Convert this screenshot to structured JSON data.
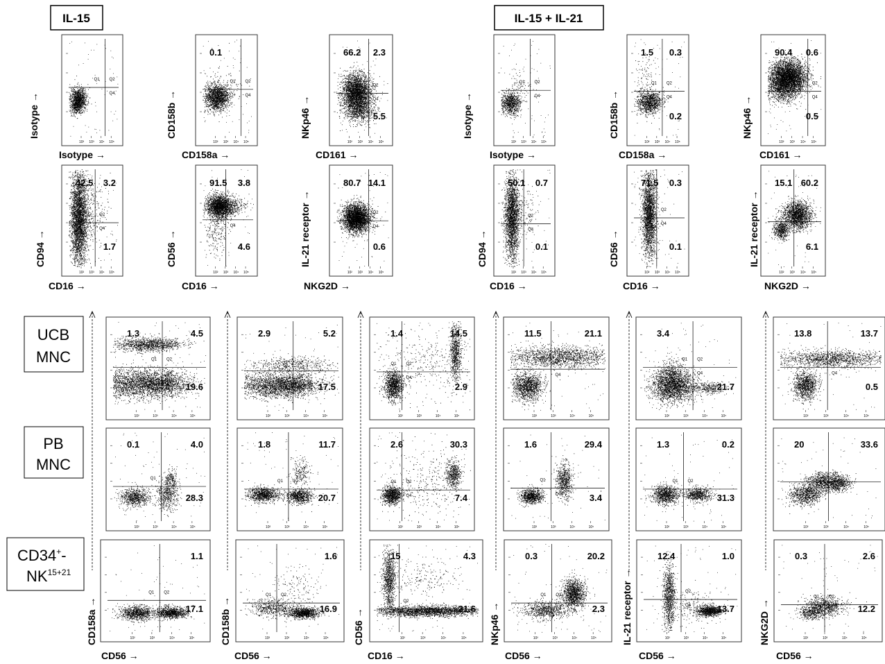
{
  "headers": {
    "il15": "IL-15",
    "il15_il21": "IL-15 + IL-21"
  },
  "row_labels": {
    "ucb": [
      "UCB",
      "MNC"
    ],
    "pb": [
      "PB",
      "MNC"
    ],
    "cd34": {
      "line1": "CD34",
      "line1_sup": "+",
      "line1_end": "-",
      "line2": "NK",
      "line2_sup": "15+21"
    }
  },
  "gate_labels": [
    "Q1",
    "Q2",
    "Q3",
    "Q4",
    "Q1-1",
    "Q2-1"
  ],
  "tick_labels": [
    "10²",
    "10³",
    "10⁴",
    "10⁵",
    "0"
  ],
  "axis_arrow": "→",
  "colors": {
    "dots": "#000000",
    "frame": "#333333",
    "background": "#ffffff"
  },
  "chart_data": [
    {
      "type": "scatter",
      "panel": "IL-15 isotype",
      "xlabel": "Isotype",
      "ylabel": "Isotype",
      "values": {}
    },
    {
      "type": "scatter",
      "panel": "IL-15 CD158a/CD158b",
      "xlabel": "CD158a",
      "ylabel": "CD158b",
      "values": {
        "tl": "0.1"
      }
    },
    {
      "type": "scatter",
      "panel": "IL-15 CD161/NKp46",
      "xlabel": "CD161",
      "ylabel": "NKp46",
      "values": {
        "tl": "66.2",
        "tr": "2.3",
        "br": "5.5"
      }
    },
    {
      "type": "scatter",
      "panel": "IL-15+IL-21 isotype",
      "xlabel": "Isotype",
      "ylabel": "Isotype",
      "values": {}
    },
    {
      "type": "scatter",
      "panel": "IL-15+IL-21 CD158a/CD158b",
      "xlabel": "CD158a",
      "ylabel": "CD158b",
      "values": {
        "tl": "1.5",
        "tr": "0.3",
        "br": "0.2"
      }
    },
    {
      "type": "scatter",
      "panel": "IL-15+IL-21 CD161/NKp46",
      "xlabel": "CD161",
      "ylabel": "NKp46",
      "values": {
        "tl": "90.4",
        "tr": "0.6",
        "br": "0.5"
      }
    },
    {
      "type": "scatter",
      "panel": "IL-15 CD16/CD94",
      "xlabel": "CD16",
      "ylabel": "CD94",
      "values": {
        "tl": "42.5",
        "tr": "3.2",
        "br": "1.7"
      }
    },
    {
      "type": "scatter",
      "panel": "IL-15 CD16/CD56",
      "xlabel": "CD16",
      "ylabel": "CD56",
      "values": {
        "tl": "91.5",
        "tr": "3.8",
        "br": "4.6"
      }
    },
    {
      "type": "scatter",
      "panel": "IL-15 NKG2D/IL-21 receptor",
      "xlabel": "NKG2D",
      "ylabel": "IL-21 receptor",
      "values": {
        "tl": "80.7",
        "tr": "14.1",
        "br": "0.6"
      }
    },
    {
      "type": "scatter",
      "panel": "IL-15+IL-21 CD16/CD94",
      "xlabel": "CD16",
      "ylabel": "CD94",
      "values": {
        "tl": "50.1",
        "tr": "0.7",
        "br": "0.1"
      }
    },
    {
      "type": "scatter",
      "panel": "IL-15+IL-21 CD16/CD56",
      "xlabel": "CD16",
      "ylabel": "CD56",
      "values": {
        "tl": "71.5",
        "tr": "0.3",
        "br": "0.1"
      }
    },
    {
      "type": "scatter",
      "panel": "IL-15+IL-21 NKG2D/IL-21 receptor",
      "xlabel": "NKG2D",
      "ylabel": "IL-21 receptor",
      "values": {
        "tl": "15.1",
        "tr": "60.2",
        "br": "6.1"
      }
    },
    {
      "type": "scatter",
      "panel": "UCB MNC CD56/CD158a",
      "values": {
        "tl": "1.3",
        "tr": "4.5",
        "br": "19.6"
      }
    },
    {
      "type": "scatter",
      "panel": "UCB MNC CD56/CD158b",
      "values": {
        "tl": "2.9",
        "tr": "5.2",
        "br": "17.5"
      }
    },
    {
      "type": "scatter",
      "panel": "UCB MNC CD16/CD56",
      "values": {
        "tl": "1.4",
        "tr": "14.5",
        "br": "2.9"
      }
    },
    {
      "type": "scatter",
      "panel": "UCB MNC CD56/NKp46",
      "values": {
        "tl": "11.5",
        "tr": "21.1"
      }
    },
    {
      "type": "scatter",
      "panel": "UCB MNC CD56/IL-21 receptor",
      "values": {
        "tl": "3.4",
        "br": "21.7"
      }
    },
    {
      "type": "scatter",
      "panel": "UCB MNC CD56/NKG2D",
      "values": {
        "tl": "13.8",
        "tr": "13.7",
        "br": "0.5"
      }
    },
    {
      "type": "scatter",
      "panel": "PB MNC CD56/CD158a",
      "values": {
        "tl": "0.1",
        "tr": "4.0",
        "br": "28.3"
      }
    },
    {
      "type": "scatter",
      "panel": "PB MNC CD56/CD158b",
      "values": {
        "tl": "1.8",
        "tr": "11.7",
        "br": "20.7"
      }
    },
    {
      "type": "scatter",
      "panel": "PB MNC CD16/CD56",
      "values": {
        "tl": "2.6",
        "tr": "30.3",
        "br": "7.4"
      }
    },
    {
      "type": "scatter",
      "panel": "PB MNC CD56/NKp46",
      "values": {
        "tl": "1.6",
        "tr": "29.4",
        "br": "3.4"
      }
    },
    {
      "type": "scatter",
      "panel": "PB MNC CD56/IL-21 receptor",
      "values": {
        "tl": "1.3",
        "tr": "0.2",
        "br": "31.3"
      }
    },
    {
      "type": "scatter",
      "panel": "PB MNC CD56/NKG2D",
      "values": {
        "tl": "20",
        "tr": "33.6"
      }
    },
    {
      "type": "scatter",
      "panel": "CD34+-NK15+21 CD56/CD158a",
      "xlabel": "CD56",
      "ylabel": "CD158a",
      "values": {
        "tr": "1.1",
        "br": "17.1"
      }
    },
    {
      "type": "scatter",
      "panel": "CD34+-NK15+21 CD56/CD158b",
      "xlabel": "CD56",
      "ylabel": "CD158b",
      "values": {
        "tr": "1.6",
        "br": "16.9"
      }
    },
    {
      "type": "scatter",
      "panel": "CD34+-NK15+21 CD16/CD56",
      "xlabel": "CD16",
      "ylabel": "CD56",
      "values": {
        "tl": "15",
        "tr": "4.3",
        "br": "21.6"
      }
    },
    {
      "type": "scatter",
      "panel": "CD34+-NK15+21 CD56/NKp46",
      "xlabel": "CD56",
      "ylabel": "NKp46",
      "values": {
        "tl": "0.3",
        "tr": "20.2",
        "br": "2.3"
      }
    },
    {
      "type": "scatter",
      "panel": "CD34+-NK15+21 CD56/IL-21 receptor",
      "xlabel": "CD56",
      "ylabel": "IL-21 receptor",
      "values": {
        "tl": "12.4",
        "tr": "1.0",
        "br": "13.7"
      }
    },
    {
      "type": "scatter",
      "panel": "CD34+-NK15+21 CD56/NKG2D",
      "xlabel": "CD56",
      "ylabel": "NKG2D",
      "values": {
        "tl": "0.3",
        "tr": "2.6",
        "br": "12.2"
      }
    }
  ]
}
